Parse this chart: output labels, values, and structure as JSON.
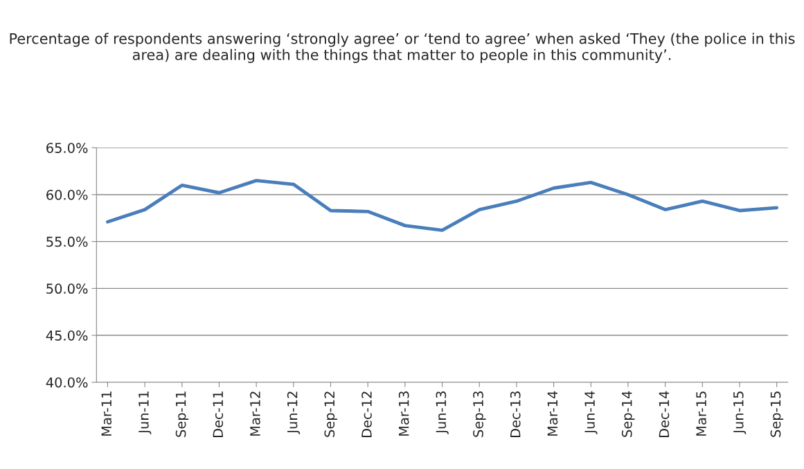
{
  "chart_data": {
    "type": "line",
    "title": "Percentage of respondents answering ‘strongly agree’ or ‘tend to agree’ when asked ‘They (the police in this area) are dealing with the things that matter to people in this community’.",
    "categories": [
      "Mar-11",
      "Jun-11",
      "Sep-11",
      "Dec-11",
      "Mar-12",
      "Jun-12",
      "Sep-12",
      "Dec-12",
      "Mar-13",
      "Jun-13",
      "Sep-13",
      "Dec-13",
      "Mar-14",
      "Jun-14",
      "Sep-14",
      "Dec-14",
      "Mar-15",
      "Jun-15",
      "Sep-15"
    ],
    "series": [
      {
        "color": "#4a7ebb",
        "values": [
          57.1,
          58.4,
          61.0,
          60.2,
          61.5,
          61.1,
          58.3,
          58.2,
          56.7,
          56.2,
          58.4,
          59.3,
          60.7,
          61.3,
          60.0,
          58.4,
          59.3,
          58.3,
          58.6
        ]
      }
    ],
    "ylim": [
      40,
      65
    ],
    "yticks": [
      {
        "value": 40,
        "label": "40.0%"
      },
      {
        "value": 45,
        "label": "45.0%"
      },
      {
        "value": 50,
        "label": "50.0%"
      },
      {
        "value": 55,
        "label": "55.0%"
      },
      {
        "value": 60,
        "label": "60.0%"
      },
      {
        "value": 65,
        "label": "65.0%"
      }
    ],
    "grid": "y",
    "marker": "none",
    "line_style": "solid"
  }
}
